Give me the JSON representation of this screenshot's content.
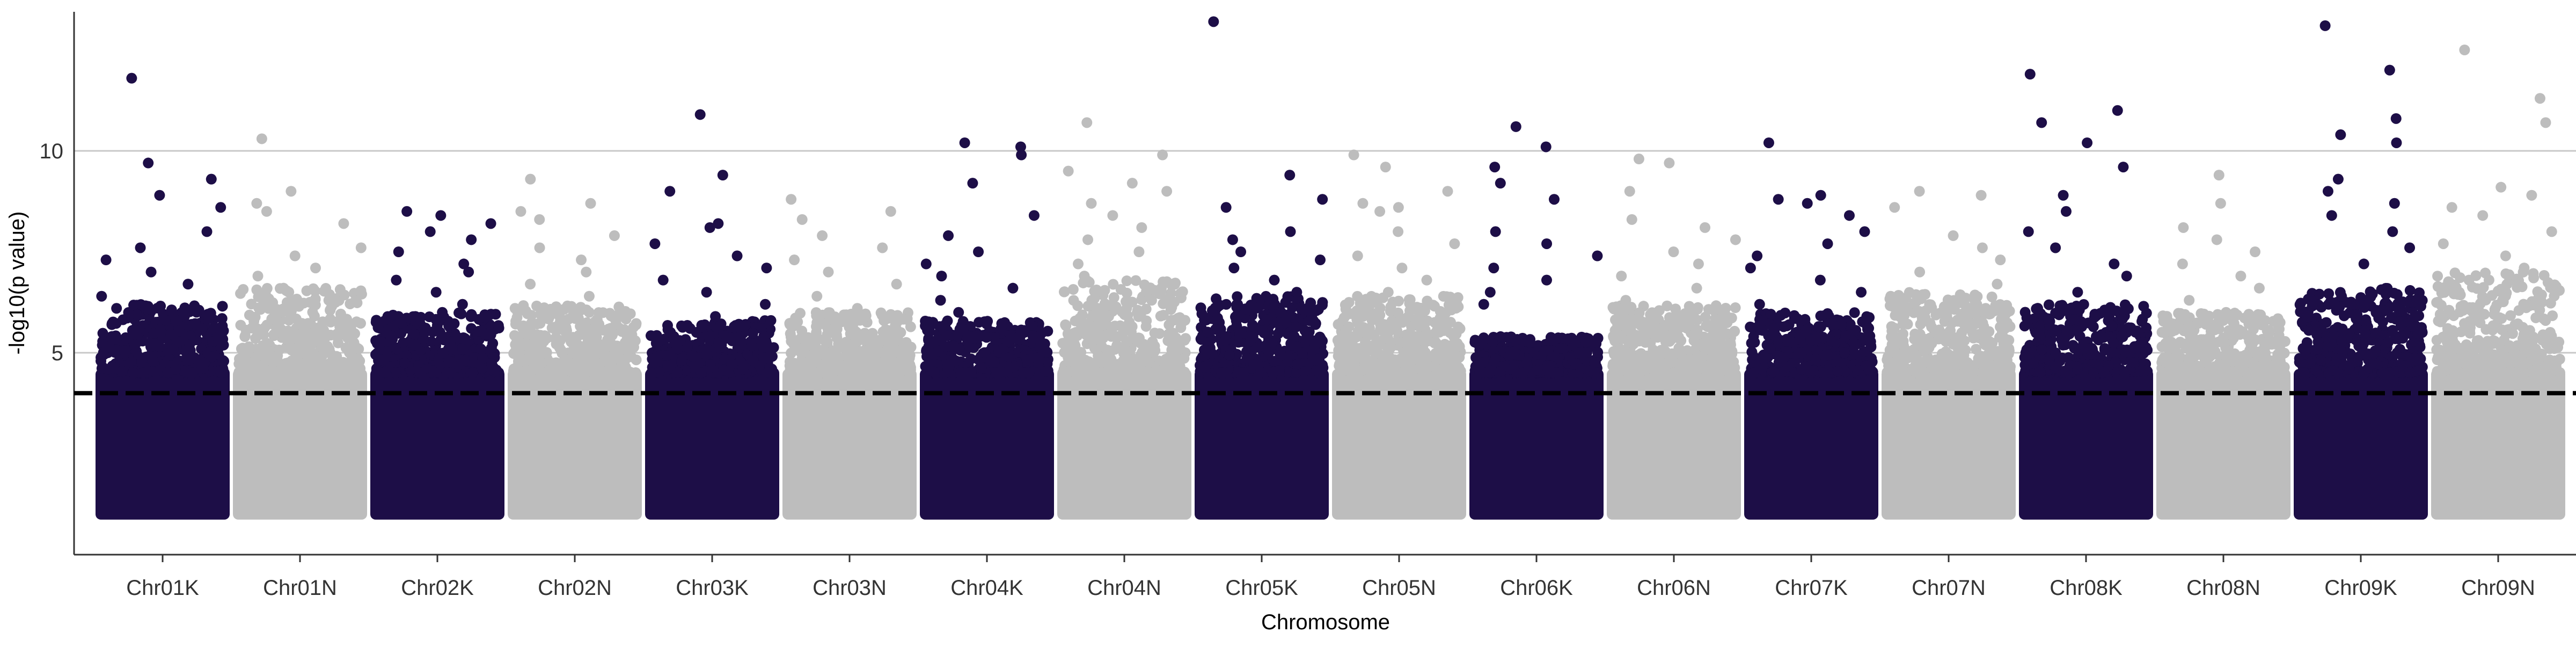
{
  "chart_data": {
    "type": "scatter",
    "subtype": "manhattan",
    "title": "",
    "xlabel": "Chromosome",
    "ylabel": "-log10(p value)",
    "y_ticks": [
      5,
      10
    ],
    "ylim": [
      0,
      13.5
    ],
    "grid": "horizontal major lines only",
    "legend": "none",
    "threshold": {
      "value": 4,
      "style": "dashed",
      "color": "#000000"
    },
    "point_floor": 1,
    "colors": {
      "odd": "#1d0e47",
      "even": "#bdbdbd"
    },
    "categories": [
      "Chr01K",
      "Chr01N",
      "Chr02K",
      "Chr02N",
      "Chr03K",
      "Chr03N",
      "Chr04K",
      "Chr04N",
      "Chr05K",
      "Chr05N",
      "Chr06K",
      "Chr06N",
      "Chr07K",
      "Chr07N",
      "Chr08K",
      "Chr08N",
      "Chr09K",
      "Chr09N"
    ],
    "series": [
      {
        "chrom": "Chr01K",
        "color_key": "odd",
        "top_values": [
          11.8,
          9.7,
          9.3,
          8.9,
          8.6,
          8.0,
          7.6,
          7.3,
          7.0,
          6.7,
          6.4,
          6.1,
          5.9,
          5.6
        ]
      },
      {
        "chrom": "Chr01N",
        "color_key": "even",
        "top_values": [
          10.3,
          9.0,
          8.7,
          8.5,
          8.2,
          7.6,
          7.4,
          7.1,
          6.9,
          6.6,
          6.3,
          6.0
        ]
      },
      {
        "chrom": "Chr02K",
        "color_key": "odd",
        "top_values": [
          8.5,
          8.4,
          8.2,
          8.0,
          7.8,
          7.5,
          7.2,
          7.0,
          6.8,
          6.5,
          6.2,
          6.0
        ]
      },
      {
        "chrom": "Chr02N",
        "color_key": "even",
        "top_values": [
          9.3,
          8.7,
          8.5,
          8.3,
          7.9,
          7.6,
          7.3,
          7.0,
          6.7,
          6.4,
          6.1
        ]
      },
      {
        "chrom": "Chr03K",
        "color_key": "odd",
        "top_values": [
          10.9,
          9.4,
          9.0,
          8.2,
          8.1,
          7.7,
          7.4,
          7.1,
          6.8,
          6.5,
          6.2,
          5.9
        ]
      },
      {
        "chrom": "Chr03N",
        "color_key": "even",
        "top_values": [
          8.8,
          8.5,
          8.3,
          7.9,
          7.6,
          7.3,
          7.0,
          6.7,
          6.4,
          6.1
        ]
      },
      {
        "chrom": "Chr04K",
        "color_key": "odd",
        "top_values": [
          10.2,
          10.1,
          9.9,
          9.2,
          8.4,
          7.9,
          7.5,
          7.2,
          6.9,
          6.6,
          6.3,
          6.0
        ]
      },
      {
        "chrom": "Chr04N",
        "color_key": "even",
        "top_values": [
          10.7,
          9.9,
          9.5,
          9.2,
          9.0,
          8.7,
          8.4,
          8.1,
          7.8,
          7.5,
          7.2,
          6.9
        ]
      },
      {
        "chrom": "Chr05K",
        "color_key": "odd",
        "top_values": [
          13.2,
          9.4,
          8.8,
          8.6,
          8.0,
          7.8,
          7.5,
          7.3,
          7.1,
          6.8,
          6.5,
          6.2
        ]
      },
      {
        "chrom": "Chr05N",
        "color_key": "even",
        "top_values": [
          9.9,
          9.6,
          9.0,
          8.7,
          8.6,
          8.5,
          8.0,
          7.7,
          7.4,
          7.1,
          6.8,
          6.5
        ]
      },
      {
        "chrom": "Chr06K",
        "color_key": "odd",
        "top_values": [
          10.6,
          10.1,
          9.6,
          9.2,
          8.8,
          8.0,
          7.7,
          7.4,
          7.1,
          6.8,
          6.5,
          6.2
        ]
      },
      {
        "chrom": "Chr06N",
        "color_key": "even",
        "top_values": [
          9.8,
          9.7,
          9.0,
          8.3,
          8.1,
          7.8,
          7.5,
          7.2,
          6.9,
          6.6,
          6.3
        ]
      },
      {
        "chrom": "Chr07K",
        "color_key": "odd",
        "top_values": [
          10.2,
          8.9,
          8.8,
          8.7,
          8.4,
          8.0,
          7.7,
          7.4,
          7.1,
          6.8,
          6.5,
          6.2
        ]
      },
      {
        "chrom": "Chr07N",
        "color_key": "even",
        "top_values": [
          9.0,
          8.9,
          8.6,
          7.9,
          7.6,
          7.3,
          7.0,
          6.7,
          6.4,
          6.1
        ]
      },
      {
        "chrom": "Chr08K",
        "color_key": "odd",
        "top_values": [
          11.9,
          11.0,
          10.7,
          10.2,
          9.6,
          8.9,
          8.5,
          8.0,
          7.6,
          7.2,
          6.9,
          6.5
        ]
      },
      {
        "chrom": "Chr08N",
        "color_key": "even",
        "top_values": [
          9.4,
          8.7,
          8.1,
          7.8,
          7.5,
          7.2,
          6.9,
          6.6,
          6.3,
          6.0
        ]
      },
      {
        "chrom": "Chr09K",
        "color_key": "odd",
        "top_values": [
          13.1,
          12.0,
          10.8,
          10.4,
          10.2,
          9.3,
          9.0,
          8.7,
          8.4,
          8.0,
          7.6,
          7.2
        ]
      },
      {
        "chrom": "Chr09N",
        "color_key": "even",
        "top_values": [
          12.5,
          11.3,
          10.7,
          9.1,
          8.9,
          8.6,
          8.4,
          8.0,
          7.7,
          7.4,
          7.1,
          6.8
        ]
      }
    ],
    "bulk": {
      "Chr01K": {
        "lower": 1,
        "upper": 6.2
      },
      "Chr01N": {
        "lower": 1,
        "upper": 6.6
      },
      "Chr02K": {
        "lower": 1,
        "upper": 6.0
      },
      "Chr02N": {
        "lower": 1,
        "upper": 6.2
      },
      "Chr03K": {
        "lower": 1,
        "upper": 5.8
      },
      "Chr03N": {
        "lower": 1,
        "upper": 6.0
      },
      "Chr04K": {
        "lower": 1,
        "upper": 5.8
      },
      "Chr04N": {
        "lower": 1,
        "upper": 6.8
      },
      "Chr05K": {
        "lower": 1,
        "upper": 6.4
      },
      "Chr05N": {
        "lower": 1,
        "upper": 6.4
      },
      "Chr06K": {
        "lower": 1,
        "upper": 5.4
      },
      "Chr06N": {
        "lower": 1,
        "upper": 6.2
      },
      "Chr07K": {
        "lower": 1,
        "upper": 6.0
      },
      "Chr07N": {
        "lower": 1,
        "upper": 6.5
      },
      "Chr08K": {
        "lower": 1,
        "upper": 6.2
      },
      "Chr08N": {
        "lower": 1,
        "upper": 6.0
      },
      "Chr09K": {
        "lower": 1,
        "upper": 6.6
      },
      "Chr09N": {
        "lower": 1,
        "upper": 7.0
      }
    }
  }
}
